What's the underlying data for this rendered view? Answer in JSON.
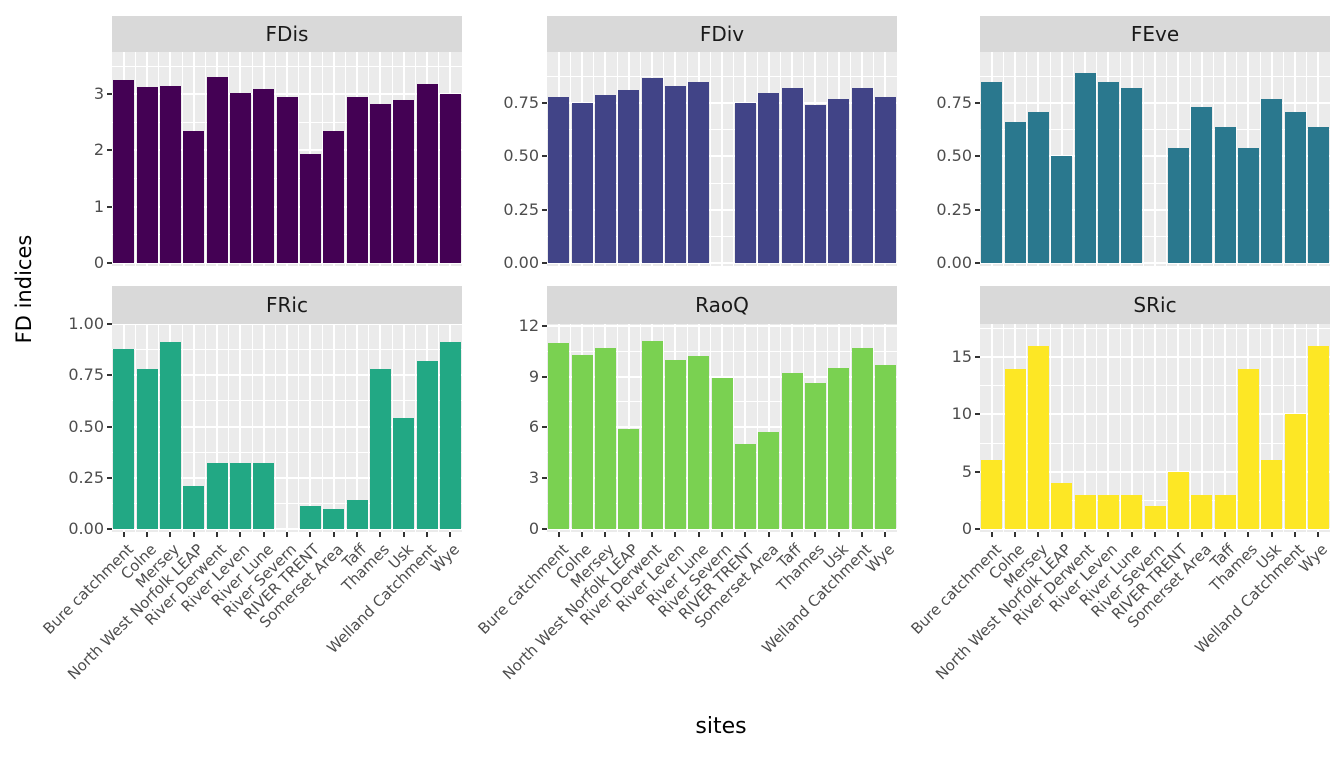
{
  "figure": {
    "y_axis_title": "FD indices",
    "x_axis_title": "sites"
  },
  "chart_data": {
    "type": "bar",
    "title": "",
    "xlabel": "sites",
    "ylabel": "FD indices",
    "legend": "none",
    "grid": true,
    "categories": [
      "Bure catchment",
      "Colne",
      "Mersey",
      "North West Norfolk LEAP",
      "River Derwent",
      "River Leven",
      "River Lune",
      "River Severn",
      "RIVER TRENT",
      "Somerset Area",
      "Taff",
      "Thames",
      "Usk",
      "Welland Catchment",
      "Wye"
    ],
    "facets": [
      {
        "title": "FDis",
        "bar_color": "#440154",
        "ylim": [
          0,
          3.75
        ],
        "yticks": [
          0,
          1,
          2,
          3
        ],
        "ytick_labels": [
          "0",
          "1",
          "2",
          "3"
        ],
        "yminor": [
          0.5,
          1.5,
          2.5,
          3.5
        ],
        "values": [
          3.25,
          3.12,
          3.14,
          2.35,
          3.31,
          3.02,
          3.09,
          2.95,
          1.93,
          2.35,
          2.95,
          2.83,
          2.9,
          3.19,
          3.0
        ]
      },
      {
        "title": "FDiv",
        "bar_color": "#414487",
        "ylim": [
          0,
          0.99
        ],
        "yticks": [
          0,
          0.25,
          0.5,
          0.75
        ],
        "ytick_labels": [
          "0.00",
          "0.25",
          "0.50",
          "0.75"
        ],
        "yminor": [
          0.125,
          0.375,
          0.625,
          0.875
        ],
        "values": [
          0.78,
          0.75,
          0.79,
          0.81,
          0.87,
          0.83,
          0.85,
          null,
          0.75,
          0.8,
          0.82,
          0.74,
          0.77,
          0.82,
          0.78
        ]
      },
      {
        "title": "FEve",
        "bar_color": "#2A788E",
        "ylim": [
          0,
          0.99
        ],
        "yticks": [
          0,
          0.25,
          0.5,
          0.75
        ],
        "ytick_labels": [
          "0.00",
          "0.25",
          "0.50",
          "0.75"
        ],
        "yminor": [
          0.125,
          0.375,
          0.625,
          0.875
        ],
        "values": [
          0.85,
          0.66,
          0.71,
          0.5,
          0.89,
          0.85,
          0.82,
          null,
          0.54,
          0.73,
          0.64,
          0.54,
          0.77,
          0.71,
          0.64
        ]
      },
      {
        "title": "FRic",
        "bar_color": "#22A884",
        "ylim": [
          0,
          1.0
        ],
        "yticks": [
          0,
          0.25,
          0.5,
          0.75,
          1.0
        ],
        "ytick_labels": [
          "0.00",
          "0.25",
          "0.50",
          "0.75",
          "1.00"
        ],
        "yminor": [
          0.125,
          0.375,
          0.625,
          0.875
        ],
        "values": [
          0.88,
          0.78,
          0.91,
          0.21,
          0.32,
          0.32,
          0.32,
          null,
          0.11,
          0.1,
          0.14,
          0.78,
          0.54,
          0.82,
          0.91
        ]
      },
      {
        "title": "RaoQ",
        "bar_color": "#7AD151",
        "ylim": [
          0,
          12.1
        ],
        "yticks": [
          0,
          3,
          6,
          9,
          12
        ],
        "ytick_labels": [
          "0",
          "3",
          "6",
          "9",
          "12"
        ],
        "yminor": [
          1.5,
          4.5,
          7.5,
          10.5
        ],
        "values": [
          11.0,
          10.3,
          10.7,
          5.9,
          11.1,
          10.0,
          10.2,
          8.9,
          5.0,
          5.7,
          9.2,
          8.6,
          9.5,
          10.7,
          9.7
        ]
      },
      {
        "title": "SRic",
        "bar_color": "#FDE725",
        "ylim": [
          0,
          17.9
        ],
        "yticks": [
          0,
          5,
          10,
          15
        ],
        "ytick_labels": [
          "0",
          "5",
          "10",
          "15"
        ],
        "yminor": [
          2.5,
          7.5,
          12.5,
          17.5
        ],
        "values": [
          6,
          14,
          16,
          4,
          3,
          3,
          3,
          2,
          5,
          3,
          3,
          14,
          6,
          10,
          16
        ]
      }
    ],
    "theme": {
      "panel_bg": "#EBEBEB",
      "strip_bg": "#D9D9D9",
      "grid_color": "#FFFFFF",
      "axis_text_color": "#4D4D4D",
      "strip_text_color": "#1A1A1A",
      "tick_color": "#333333",
      "bar_width_fraction": 0.9
    }
  }
}
